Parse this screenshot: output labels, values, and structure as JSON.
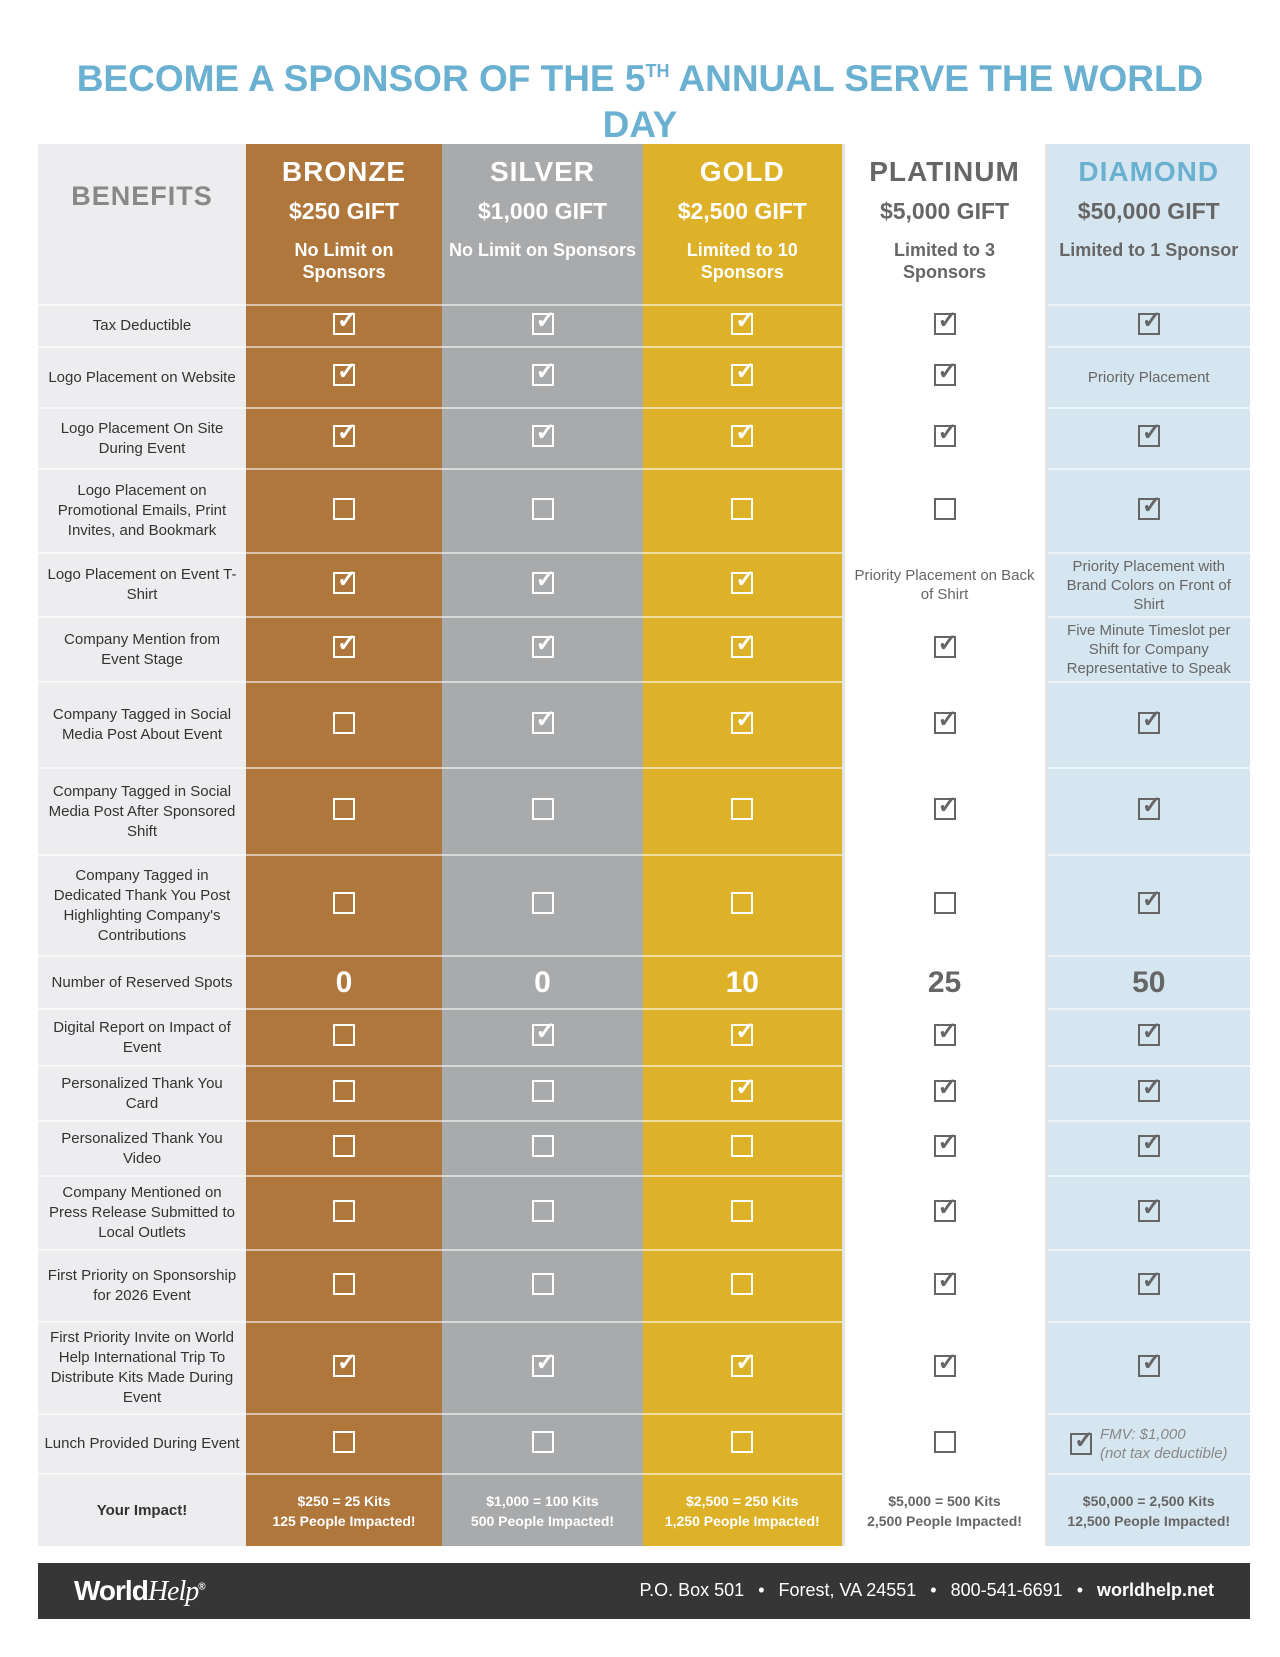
{
  "title": {
    "before": "BECOME A SPONSOR OF THE 5",
    "sup": "TH",
    "after": " ANNUAL SERVE THE WORLD DAY"
  },
  "colors": {
    "title": "#6ab0d0",
    "bronze": "#b0773c",
    "silver": "#a9aaac",
    "gold": "#ddb228",
    "platinum": "#ffffff",
    "diamond": "#d6e6f0",
    "benefits": "#ededef",
    "footer": "#363636"
  },
  "benefits_header": "BENEFITS",
  "tiers": [
    {
      "name": "BRONZE",
      "gift": "$250 GIFT",
      "limit": "No Limit on Sponsors"
    },
    {
      "name": "SILVER",
      "gift": "$1,000 GIFT",
      "limit": "No Limit on Sponsors"
    },
    {
      "name": "GOLD",
      "gift": "$2,500 GIFT",
      "limit": "Limited to 10 Sponsors"
    },
    {
      "name": "PLATINUM",
      "gift": "$5,000 GIFT",
      "limit": "Limited to 3 Sponsors"
    },
    {
      "name": "DIAMOND",
      "gift": "$50,000 GIFT",
      "limit": "Limited to 1 Sponsor"
    }
  ],
  "rows": [
    {
      "label": "Tax Deductible",
      "cells": [
        "check",
        "check",
        "check",
        "check",
        "check"
      ]
    },
    {
      "label": "Logo Placement on Website",
      "cells": [
        "check",
        "check",
        "check",
        "check",
        "Priority Placement"
      ]
    },
    {
      "label": "Logo Placement On Site During Event",
      "cells": [
        "check",
        "check",
        "check",
        "check",
        "check"
      ]
    },
    {
      "label": "Logo Placement on Promotional Emails, Print Invites, and Bookmark",
      "cells": [
        "empty",
        "empty",
        "empty",
        "empty",
        "check"
      ]
    },
    {
      "label": "Logo Placement on Event T-Shirt",
      "cells": [
        "check",
        "check",
        "check",
        "Priority Placement on Back of Shirt",
        "Priority Placement with Brand Colors on Front of Shirt"
      ]
    },
    {
      "label": "Company Mention from Event Stage",
      "cells": [
        "check",
        "check",
        "check",
        "check",
        "Five Minute Timeslot per Shift for Company Representative to Speak"
      ]
    },
    {
      "label": "Company Tagged in Social Media Post About Event",
      "cells": [
        "empty",
        "check",
        "check",
        "check",
        "check"
      ]
    },
    {
      "label": "Company Tagged in Social Media Post After Sponsored Shift",
      "cells": [
        "empty",
        "empty",
        "empty",
        "check",
        "check"
      ]
    },
    {
      "label": "Company Tagged in Dedicated Thank You Post Highlighting Company's Contributions",
      "cells": [
        "empty",
        "empty",
        "empty",
        "empty",
        "check"
      ]
    },
    {
      "label": "Number of Reserved Spots",
      "numbers": [
        "0",
        "0",
        "10",
        "25",
        "50"
      ]
    },
    {
      "label": "Digital Report on Impact of Event",
      "cells": [
        "empty",
        "check",
        "check",
        "check",
        "check"
      ]
    },
    {
      "label": "Personalized Thank You Card",
      "cells": [
        "empty",
        "empty",
        "check",
        "check",
        "check"
      ]
    },
    {
      "label": "Personalized Thank You Video",
      "cells": [
        "empty",
        "empty",
        "empty",
        "check",
        "check"
      ]
    },
    {
      "label": "Company Mentioned on Press Release Submitted to Local Outlets",
      "cells": [
        "empty",
        "empty",
        "empty",
        "check",
        "check"
      ]
    },
    {
      "label": "First Priority on Sponsorship for 2026 Event",
      "cells": [
        "empty",
        "empty",
        "empty",
        "check",
        "check"
      ]
    },
    {
      "label": "First Priority Invite on World Help International Trip To Distribute Kits Made During Event",
      "cells": [
        "check",
        "check",
        "check",
        "check",
        "check"
      ]
    },
    {
      "label": "Lunch Provided During Event",
      "cells": [
        "empty",
        "empty",
        "empty",
        "empty",
        "check"
      ],
      "diamond_note": {
        "fmv": "FMV: $1,000",
        "note": "(not tax deductible)"
      }
    }
  ],
  "impact": {
    "label": "Your Impact!",
    "values": [
      {
        "kits": "$250 = 25 Kits",
        "people": "125 People Impacted!"
      },
      {
        "kits": "$1,000 = 100 Kits",
        "people": "500 People Impacted!"
      },
      {
        "kits": "$2,500 = 250 Kits",
        "people": "1,250 People Impacted!"
      },
      {
        "kits": "$5,000 = 500 Kits",
        "people": "2,500 People Impacted!"
      },
      {
        "kits": "$50,000 = 2,500 Kits",
        "people": "12,500 People Impacted!"
      }
    ]
  },
  "footer": {
    "logo_bold": "World",
    "logo_italic": "Help",
    "logo_mark": "®",
    "address": "P.O. Box 501",
    "city": "Forest, VA 24551",
    "phone": "800-541-6691",
    "website": "worldhelp.net",
    "separator": "•"
  }
}
